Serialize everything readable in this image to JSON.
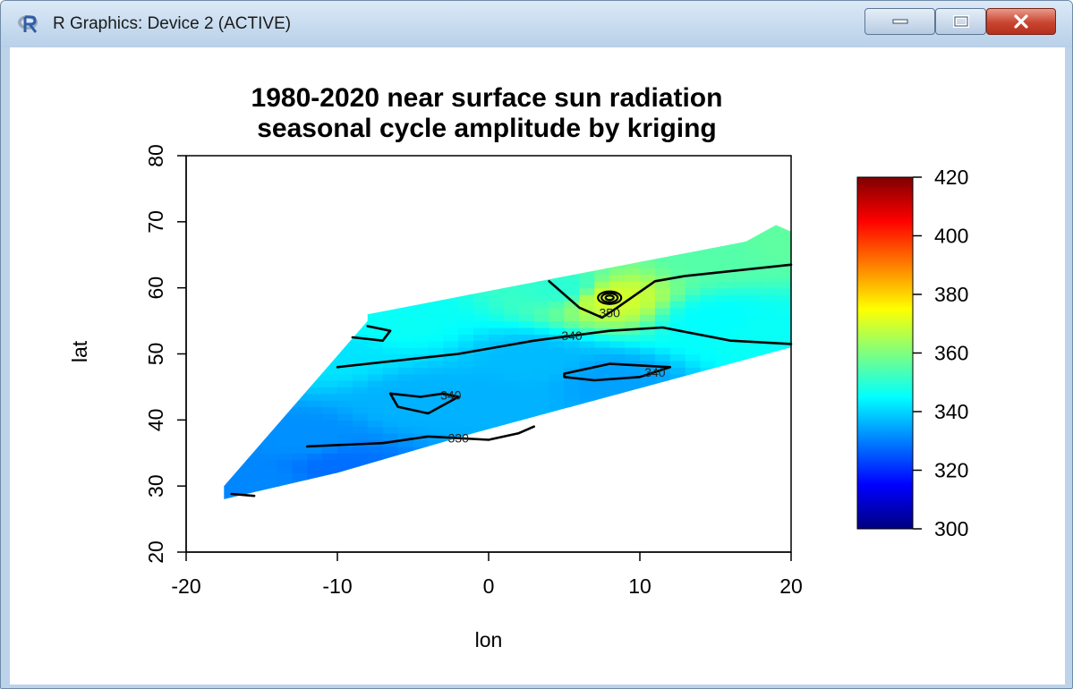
{
  "window": {
    "title": "R Graphics: Device 2 (ACTIVE)",
    "icons": {
      "app": "r-logo-icon",
      "minimize": "minimize-icon",
      "maximize": "maximize-icon",
      "close": "close-icon"
    }
  },
  "chart_data": {
    "type": "heatmap",
    "title_line1": "1980-2020 near surface sun radiation",
    "title_line2": "seasonal cycle amplitude by kriging",
    "xlabel": "lon",
    "ylabel": "lat",
    "xlim": [
      -20,
      20
    ],
    "ylim": [
      20,
      80
    ],
    "x_ticks": [
      "-20",
      "-10",
      "0",
      "10",
      "20"
    ],
    "y_ticks": [
      "20",
      "30",
      "40",
      "50",
      "60",
      "70",
      "80"
    ],
    "colorbar": {
      "range": [
        300,
        420
      ],
      "ticks": [
        "300",
        "320",
        "340",
        "360",
        "380",
        "400",
        "420"
      ],
      "colors": [
        "#00007f",
        "#0000ff",
        "#007fff",
        "#00ffff",
        "#7fff7f",
        "#ffff00",
        "#ff7f00",
        "#ff0000",
        "#7f0000"
      ]
    },
    "contour_labels": [
      "350",
      "340",
      "340",
      "340",
      "330"
    ],
    "contours": [
      {
        "label": "350",
        "points": [
          [
            4,
            61
          ],
          [
            6,
            57
          ],
          [
            7.5,
            55.5
          ],
          [
            8.5,
            57
          ],
          [
            11,
            61
          ],
          [
            13,
            61.8
          ],
          [
            20,
            63.5
          ]
        ]
      },
      {
        "label": "340",
        "points": [
          [
            -10,
            48
          ],
          [
            -2,
            50
          ],
          [
            3,
            52
          ],
          [
            8,
            53.5
          ],
          [
            11.5,
            54
          ],
          [
            16,
            52
          ],
          [
            20,
            51.5
          ]
        ]
      },
      {
        "label": "340",
        "points": [
          [
            5,
            47
          ],
          [
            8,
            48.5
          ],
          [
            12,
            48
          ],
          [
            10,
            46.5
          ],
          [
            7,
            46
          ],
          [
            5,
            46.5
          ],
          [
            5,
            47
          ]
        ]
      },
      {
        "label": "340",
        "points": [
          [
            -6.5,
            44
          ],
          [
            -4.5,
            43.5
          ],
          [
            -3,
            44
          ],
          [
            -2,
            43.5
          ],
          [
            -4,
            41
          ],
          [
            -6,
            42
          ],
          [
            -6.5,
            44
          ]
        ]
      },
      {
        "label": "330",
        "points": [
          [
            -12,
            36
          ],
          [
            -7,
            36.5
          ],
          [
            -4,
            37.5
          ],
          [
            0,
            37
          ],
          [
            2,
            38
          ],
          [
            3,
            39
          ]
        ]
      },
      {
        "label": "",
        "points": [
          [
            -9,
            52.5
          ],
          [
            -7,
            52
          ],
          [
            -6.5,
            53.5
          ],
          [
            -8,
            54.2
          ]
        ]
      },
      {
        "label": "",
        "points": [
          [
            -17,
            28.8
          ],
          [
            -15.5,
            28.5
          ]
        ]
      }
    ],
    "peak_location": [
      8,
      58.5
    ],
    "field": {
      "polygon": [
        [
          -17.5,
          28
        ],
        [
          -17.5,
          30
        ],
        [
          -8,
          55
        ],
        [
          -8,
          56
        ],
        [
          17,
          67
        ],
        [
          19,
          69.5
        ],
        [
          20,
          68.5
        ],
        [
          20,
          51
        ],
        [
          -1,
          38
        ],
        [
          -10,
          32
        ],
        [
          -17.5,
          28
        ]
      ],
      "control": [
        [
          15,
          65,
          355
        ],
        [
          20,
          67,
          356
        ],
        [
          5,
          60,
          350
        ],
        [
          8,
          58.5,
          370
        ],
        [
          -6,
          55,
          346
        ],
        [
          -10,
          50,
          342
        ],
        [
          3,
          49,
          337
        ],
        [
          8,
          46,
          334
        ],
        [
          -5,
          43,
          336
        ],
        [
          0,
          43,
          336
        ],
        [
          -12,
          37,
          332
        ],
        [
          -10,
          33,
          328
        ],
        [
          -15,
          30,
          331
        ],
        [
          15,
          55,
          345
        ],
        [
          18,
          53,
          346
        ]
      ]
    }
  }
}
